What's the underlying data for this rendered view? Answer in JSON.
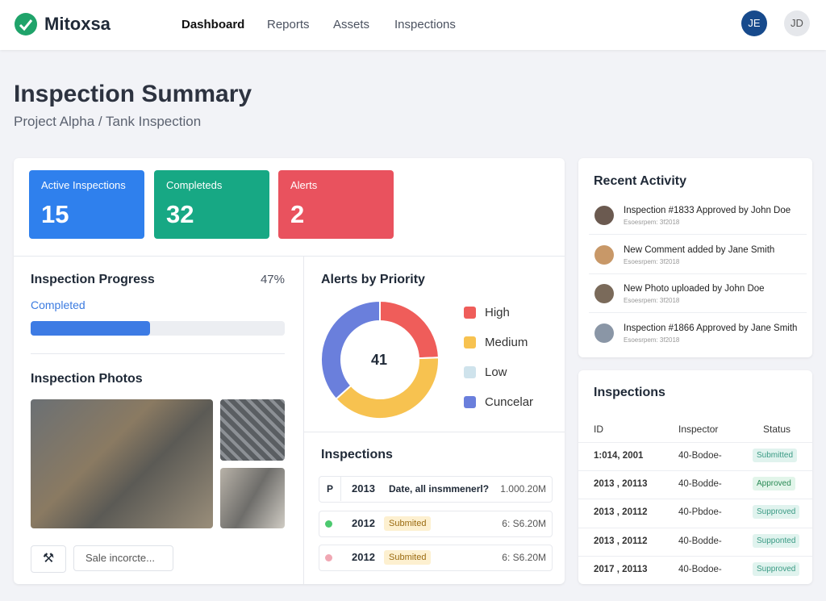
{
  "header": {
    "brand": "Mitoxsa",
    "nav": [
      "Dashboard",
      "Reports",
      "Assets",
      "Inspections"
    ],
    "avatars": [
      "JE",
      "JD"
    ]
  },
  "page": {
    "title": "Inspection Summary",
    "subtitle": "Project Alpha / Tank Inspection"
  },
  "stats": [
    {
      "label": "Active Inspections",
      "value": "15",
      "color": "#2f80ed"
    },
    {
      "label": "Completeds",
      "value": "32",
      "color": "#17a884"
    },
    {
      "label": "Alerts",
      "value": "2",
      "color": "#e9525e"
    }
  ],
  "progress": {
    "title": "Inspection Progress",
    "value": 47,
    "value_label": "47%",
    "label": "Completed"
  },
  "photos": {
    "title": "Inspection Photos"
  },
  "search": {
    "placeholder": "Sale incorcte..."
  },
  "alerts_chart": {
    "type": "donut",
    "title": "Alerts by Priority",
    "center": "41",
    "categories": [
      "High",
      "Medium",
      "Low",
      "Cuncelar"
    ],
    "values": [
      10,
      16,
      0,
      15
    ],
    "colors": [
      "#ef5d5a",
      "#f7c250",
      "#cfe3ec",
      "#6a7fdc"
    ]
  },
  "inspections_list": {
    "title": "Inspections",
    "rows": [
      {
        "icon": "P",
        "year": "2013",
        "text": "Date, all insmmenerl?",
        "amount": "1.000.20M"
      },
      {
        "dot": "#4cc96f",
        "year": "2012",
        "badge": "Submited",
        "amount": "6: S6.20M"
      },
      {
        "dot": "#f0a7b3",
        "year": "2012",
        "badge": "Submited",
        "amount": "6: S6.20M"
      }
    ]
  },
  "activity": {
    "title": "Recent Activity",
    "items": [
      {
        "text": "Inspection #1833 Approved by John Doe",
        "sub": "Esoesrpem: 3f2018"
      },
      {
        "text": "New Comment added by Jane Smith",
        "sub": "Esoesrpem: 3f2018"
      },
      {
        "text": "New Photo uploaded by John Doe",
        "sub": "Esoesrpem: 3f2018"
      },
      {
        "text": "Inspection #1866 Approved by Jane Smith",
        "sub": "Esoesrpem: 3f2018"
      }
    ]
  },
  "inspections_table": {
    "title": "Inspections",
    "columns": [
      "ID",
      "Inspector",
      "Status"
    ],
    "rows": [
      [
        "1:014, 2001",
        "40-Bodoe-",
        "Submitted"
      ],
      [
        "2013 , 20113",
        "40-Bodde-",
        "Approved"
      ],
      [
        "2013 , 20112",
        "40-Pbdoe-",
        "Supproved"
      ],
      [
        "2013 , 20112",
        "40-Bodde-",
        "Supponted"
      ],
      [
        "2017 , 20113",
        "40-Bodoe-",
        "Supproved"
      ]
    ]
  }
}
